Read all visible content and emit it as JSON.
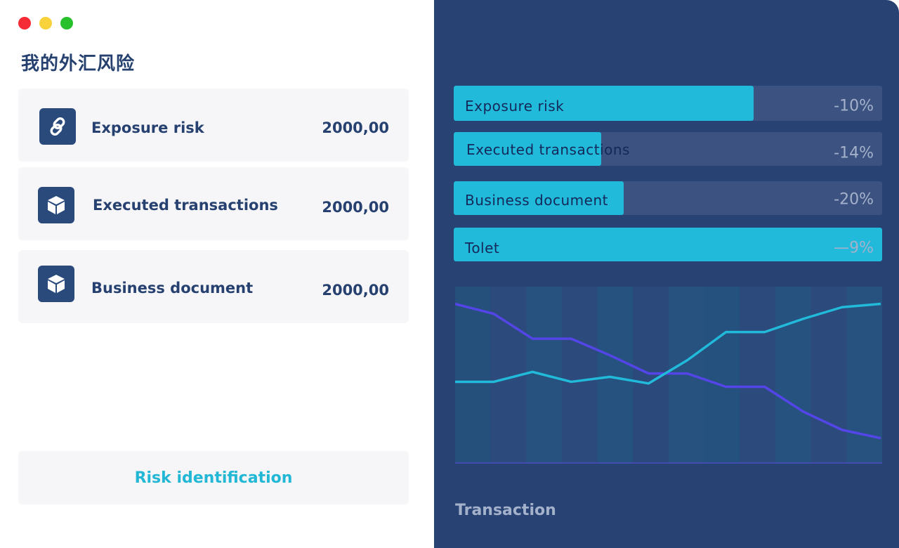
{
  "window": {
    "controls": [
      {
        "name": "close",
        "color": "#f52b35"
      },
      {
        "name": "minimize",
        "color": "#f7d23b"
      },
      {
        "name": "maximize",
        "color": "#29c02e"
      }
    ]
  },
  "page_title": "我的外汇风险",
  "cards": [
    {
      "icon": "link-icon",
      "label": "Exposure risk",
      "value": "2000,00"
    },
    {
      "icon": "cube-icon",
      "label": "Executed transactions",
      "value": "2000,00"
    },
    {
      "icon": "cube-icon",
      "label": "Business document",
      "value": "2000,00"
    }
  ],
  "action_button": "Risk identification",
  "bars": [
    {
      "label": "Exposure risk",
      "percent_text": "-10%",
      "fill_fraction": 0.7
    },
    {
      "label": "Executed transactions",
      "percent_text": "-14%",
      "fill_fraction": 0.344
    },
    {
      "label": "Business document",
      "percent_text": "-20%",
      "fill_fraction": 0.397
    },
    {
      "label": "Tolet",
      "percent_text": "—9%",
      "fill_fraction": 1.0
    }
  ],
  "colors": {
    "accent": "#21bada",
    "brand_dark": "#284274",
    "series_a": "#5445e8",
    "series_b": "#21bada"
  },
  "chart_data": {
    "type": "line",
    "title": "",
    "xlabel": "Transaction",
    "ylabel": "",
    "x": [
      0,
      1,
      2,
      3,
      4,
      5,
      6,
      7,
      8,
      9,
      10,
      11
    ],
    "ylim": [
      0,
      100
    ],
    "grid": false,
    "series": [
      {
        "values": [
          93,
          87,
          72,
          72,
          62,
          51,
          51,
          43,
          43,
          28,
          17,
          12
        ],
        "color": "#5445e8"
      },
      {
        "values": [
          46,
          46,
          52,
          46,
          49,
          45,
          59,
          76,
          76,
          84,
          91,
          93
        ],
        "color": "#21bada"
      }
    ]
  }
}
